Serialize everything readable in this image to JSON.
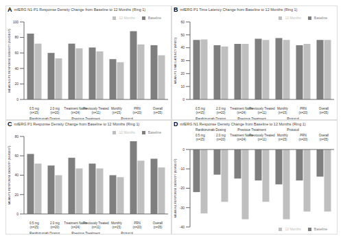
{
  "chart_data": [
    {
      "type": "bar",
      "label": "A",
      "title": "mfERG N1-P1 Response Density Change from Baseline to 12 Months (Ring 1)",
      "y_label": "MEAN N1-P1 RESPONSE DENSITY (NV/DEG²)",
      "categories": [
        "0.5 mg (n=15)",
        "2.0 mg (n=20)",
        "Treatment Naïve (n=24)",
        "Previously Treated (n=11)",
        "Monthly (n=15)",
        "PRN (n=20)",
        "Overall (n=35)"
      ],
      "groups": [
        "Ranibizumab Dosing",
        "Ranibizumab Dosing",
        "Previous Treatment",
        "Previous Treatment",
        "Protocol",
        "Protocol",
        null
      ],
      "series": [
        {
          "name": "Baseline",
          "color": "#7f7f7f",
          "values": [
            85,
            60,
            72,
            67,
            52,
            88,
            70
          ]
        },
        {
          "name": "12 Months",
          "color": "#bfbfbf",
          "values": [
            72,
            53,
            66,
            62,
            48,
            71,
            57
          ]
        }
      ],
      "ylim": [
        0,
        100
      ],
      "yticks": [
        0,
        20,
        40,
        60,
        80,
        100
      ],
      "grid": false,
      "legend": "upper right"
    },
    {
      "type": "bar",
      "label": "B",
      "title": "mfERG P1 Time Latency Change from Baseline to 12 Months (Ring 1)",
      "y_label": "MEAN P1 TIME LATENCY (MSEC)",
      "categories": [
        "0.5 mg (n=15)",
        "2.0 mg (n=20)",
        "Treatment Naïve (n=24)",
        "Previously Treated (n=11)",
        "Monthly (n=15)",
        "PRN (n=20)",
        "Overall (n=35)"
      ],
      "groups": [
        "Ranibizumab Dosing",
        "Ranibizumab Dosing",
        "Previous Treatment",
        "Previous Treatment",
        "Protocol",
        "Protocol",
        null
      ],
      "series": [
        {
          "name": "Baseline",
          "color": "#7f7f7f",
          "values": [
            46,
            42,
            43,
            47,
            47.5,
            42,
            46
          ]
        },
        {
          "name": "12 Months",
          "color": "#bfbfbf",
          "values": [
            46.5,
            41,
            43,
            46,
            46,
            43,
            46
          ]
        }
      ],
      "ylim": [
        0,
        60
      ],
      "yticks": [
        0,
        10,
        20,
        30,
        40,
        50,
        60
      ],
      "grid": false,
      "legend": "upper right"
    },
    {
      "type": "bar",
      "label": "C",
      "title": "mfERG P1 Response Density Change from Baseline to 12 Months (Ring 1)",
      "y_label": "MEAN P1 RESPONSE DENSITY (NV/DEG²)",
      "categories": [
        "0.5 mg (n=15)",
        "2.0 mg (n=20)",
        "Treatment Naïve (n=24)",
        "Previously Treated (n=11)",
        "Monthly (n=15)",
        "PRN (n=20)",
        "Overall (n=35)"
      ],
      "groups": [
        "Ranibizumab Dosing",
        "Ranibizumab Dosing",
        "Previous Treatment",
        "Previous Treatment",
        "Protocol",
        "Protocol",
        null
      ],
      "series": [
        {
          "name": "Baseline",
          "color": "#7f7f7f",
          "values": [
            62,
            50,
            58,
            52,
            40,
            75,
            57
          ]
        },
        {
          "name": "12 Months",
          "color": "#bfbfbf",
          "values": [
            52,
            40,
            47,
            47,
            38,
            55,
            48
          ]
        }
      ],
      "ylim": [
        0,
        80
      ],
      "yticks": [
        0,
        20,
        40,
        60,
        80
      ],
      "grid": false,
      "legend": "upper right"
    },
    {
      "type": "bar",
      "label": "D",
      "title": "mfERG N1 Response Density Change from Baseline to 12 Months (Ring 1)",
      "y_label": "MEAN N1 RESPONSE DENSITY (NV/DEG²)",
      "categories": [
        "0.5 mg (n=15)",
        "2.0 mg (n=20)",
        "Treatment Naïve (n=24)",
        "Previously Treated (n=11)",
        "Monthly (n=15)",
        "PRN (n=20)",
        "Overall (n=35)"
      ],
      "groups": [
        "Ranibizumab Dosing",
        "Ranibizumab Dosing",
        "Previous Treatment",
        "Previous Treatment",
        "Protocol",
        "Protocol",
        null
      ],
      "series": [
        {
          "name": "Baseline",
          "color": "#7f7f7f",
          "values": [
            -22,
            -13,
            -15,
            -16,
            -18,
            -16,
            -14
          ]
        },
        {
          "name": "12 Months",
          "color": "#bfbfbf",
          "values": [
            -33,
            -27,
            -36,
            -27,
            -36,
            -32,
            -32
          ]
        }
      ],
      "ylim": [
        -40,
        0
      ],
      "yticks": [
        -40,
        -30,
        -20,
        -10,
        0
      ],
      "grid": false,
      "legend": "lower right"
    }
  ]
}
